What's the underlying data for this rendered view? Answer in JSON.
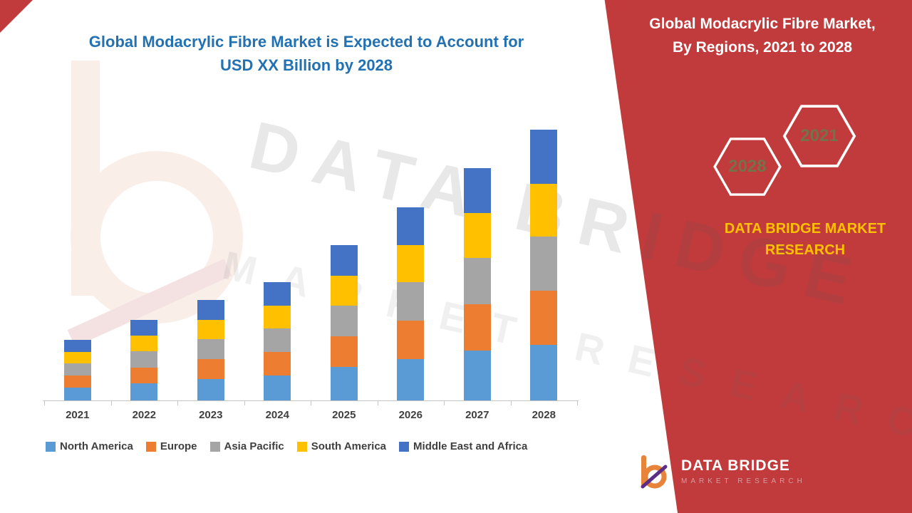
{
  "main_title": {
    "line1": "Global Modacrylic Fibre Market is Expected to Account for",
    "line2": "USD XX Billion by 2028"
  },
  "side_panel": {
    "title_line1": "Global Modacrylic Fibre Market,",
    "title_line2": "By Regions, 2021 to 2028",
    "hexagons": [
      {
        "label": "2028"
      },
      {
        "label": "2021"
      }
    ],
    "brand_line1": "DATA BRIDGE MARKET",
    "brand_line2": "RESEARCH",
    "accent_red": "#c13a3c",
    "brand_yellow": "#ffc000"
  },
  "watermark": {
    "line1": "DATA BRIDGE",
    "line2": "MARKET RESEARCH"
  },
  "footer_logo": {
    "name": "DATA BRIDGE",
    "subtitle": "MARKET RESEARCH"
  },
  "chart_data": {
    "type": "bar",
    "stacked": true,
    "title": "Global Modacrylic Fibre Market is Expected to Account for USD XX Billion by 2028",
    "value_axis_visible": false,
    "values_estimated_from_bar_heights": true,
    "categories": [
      "2021",
      "2022",
      "2023",
      "2024",
      "2025",
      "2026",
      "2027",
      "2028"
    ],
    "series": [
      {
        "name": "North America",
        "color": "#5b9bd5",
        "values": [
          1.8,
          2.4,
          3.0,
          3.5,
          4.7,
          5.8,
          7.0,
          7.8
        ]
      },
      {
        "name": "Europe",
        "color": "#ed7d31",
        "values": [
          1.7,
          2.2,
          2.8,
          3.3,
          4.3,
          5.4,
          6.5,
          7.6
        ]
      },
      {
        "name": "Asia Pacific",
        "color": "#a5a5a5",
        "values": [
          1.7,
          2.3,
          2.8,
          3.3,
          4.3,
          5.4,
          6.5,
          7.6
        ]
      },
      {
        "name": "South America",
        "color": "#ffc000",
        "values": [
          1.6,
          2.2,
          2.7,
          3.2,
          4.2,
          5.2,
          6.3,
          7.4
        ]
      },
      {
        "name": "Middle East and Africa",
        "color": "#4472c4",
        "values": [
          1.7,
          2.2,
          2.8,
          3.3,
          4.3,
          5.3,
          6.3,
          7.6
        ]
      }
    ],
    "totals": [
      8.5,
      11.3,
      14.1,
      16.6,
      21.8,
      27.1,
      32.6,
      38.0
    ],
    "ylim": [
      0,
      39
    ],
    "grid": false,
    "legend_position": "bottom"
  }
}
